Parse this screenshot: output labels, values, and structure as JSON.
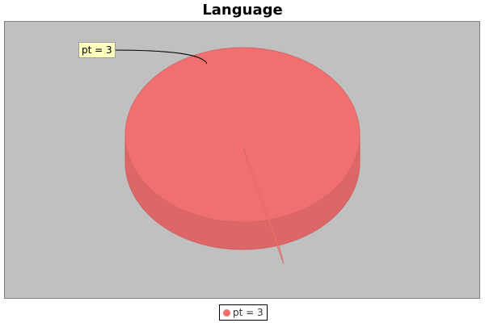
{
  "chart_data": {
    "type": "pie",
    "title": "Language",
    "slices": [
      {
        "label": "pt",
        "value": 3,
        "label_text": "pt = 3",
        "color": "#f07070"
      }
    ],
    "legend": {
      "placement": "bottom",
      "entries": [
        "pt = 3"
      ]
    },
    "background": "#c0c0c0",
    "style": "3d"
  }
}
